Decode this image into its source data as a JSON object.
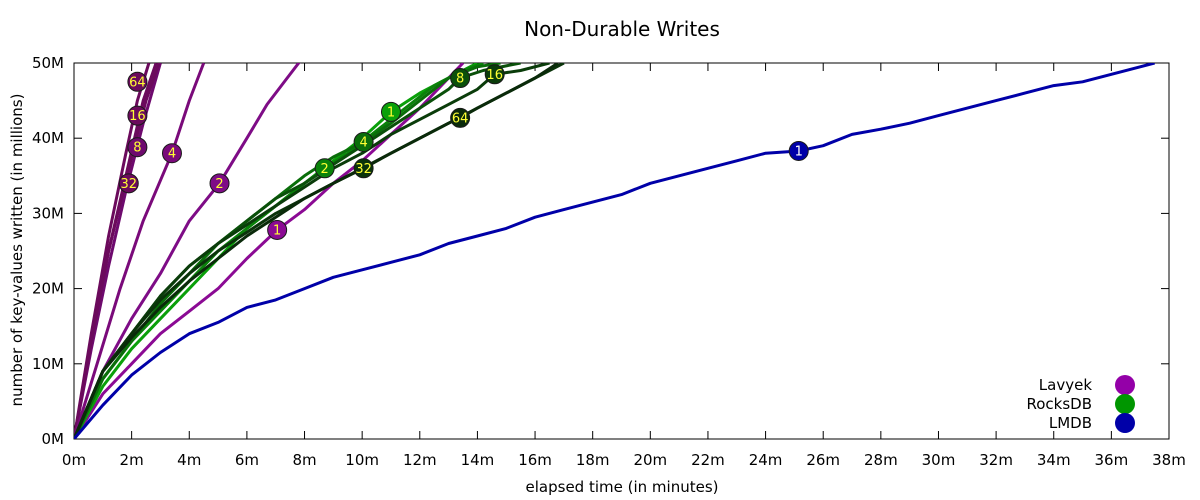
{
  "chart_data": {
    "type": "line",
    "title": "Non-Durable Writes",
    "xlabel": "elapsed time (in minutes)",
    "ylabel": "number of key-values written (in millions)",
    "xlim": [
      0,
      38
    ],
    "ylim": [
      0,
      50
    ],
    "x_ticks": [
      0,
      2,
      4,
      6,
      8,
      10,
      12,
      14,
      16,
      18,
      20,
      22,
      24,
      26,
      28,
      30,
      32,
      34,
      36,
      38
    ],
    "x_tick_labels": [
      "0m",
      "2m",
      "4m",
      "6m",
      "8m",
      "10m",
      "12m",
      "14m",
      "16m",
      "18m",
      "20m",
      "22m",
      "24m",
      "26m",
      "28m",
      "30m",
      "32m",
      "34m",
      "36m",
      "38m"
    ],
    "y_ticks": [
      0,
      10,
      20,
      30,
      40,
      50
    ],
    "y_tick_labels": [
      "0M",
      "10M",
      "20M",
      "30M",
      "40M",
      "50M"
    ],
    "grid": false,
    "legend_position": "bottom-right",
    "legend": [
      {
        "name": "Lavyek",
        "color": "#9400a8"
      },
      {
        "name": "RocksDB",
        "color": "#009600"
      },
      {
        "name": "LMDB",
        "color": "#0000a8"
      }
    ],
    "series": [
      {
        "db": "Lavyek",
        "label": "64",
        "color": "#6b0a5c",
        "marker_x": 2.2,
        "marker_y": 47.5,
        "points": [
          [
            0,
            0
          ],
          [
            0.6,
            14
          ],
          [
            1.2,
            27
          ],
          [
            1.8,
            38
          ],
          [
            2.2,
            45
          ],
          [
            2.6,
            50
          ]
        ]
      },
      {
        "db": "Lavyek",
        "label": "16",
        "color": "#6b0a5c",
        "marker_x": 2.2,
        "marker_y": 43,
        "points": [
          [
            0,
            0
          ],
          [
            0.6,
            13
          ],
          [
            1.2,
            25
          ],
          [
            1.8,
            35
          ],
          [
            2.4,
            45
          ],
          [
            2.85,
            50
          ]
        ]
      },
      {
        "db": "Lavyek",
        "label": "8",
        "color": "#6e0a6e",
        "marker_x": 2.2,
        "marker_y": 38.8,
        "points": [
          [
            0,
            0
          ],
          [
            0.6,
            12
          ],
          [
            1.2,
            23
          ],
          [
            1.8,
            33
          ],
          [
            2.4,
            42
          ],
          [
            3.0,
            50
          ]
        ]
      },
      {
        "db": "Lavyek",
        "label": "32",
        "color": "#6b0a5c",
        "marker_x": 1.9,
        "marker_y": 34,
        "points": [
          [
            0,
            0
          ],
          [
            0.6,
            13
          ],
          [
            1.2,
            25
          ],
          [
            1.9,
            36
          ],
          [
            2.5,
            45
          ],
          [
            2.95,
            50
          ]
        ]
      },
      {
        "db": "Lavyek",
        "label": "4",
        "color": "#7a0a7a",
        "marker_x": 3.4,
        "marker_y": 38,
        "points": [
          [
            0,
            0
          ],
          [
            0.8,
            10
          ],
          [
            1.6,
            20
          ],
          [
            2.4,
            29
          ],
          [
            3.4,
            38
          ],
          [
            4.0,
            45
          ],
          [
            4.5,
            50
          ]
        ]
      },
      {
        "db": "Lavyek",
        "label": "2",
        "color": "#7e0c86",
        "marker_x": 5.05,
        "marker_y": 34,
        "points": [
          [
            0,
            0
          ],
          [
            1,
            9
          ],
          [
            2,
            16
          ],
          [
            3,
            22
          ],
          [
            4,
            29
          ],
          [
            5.05,
            34
          ],
          [
            6,
            40
          ],
          [
            6.7,
            44.5
          ],
          [
            7.4,
            48
          ],
          [
            7.9,
            50.5
          ]
        ]
      },
      {
        "db": "Lavyek",
        "label": "1",
        "color": "#8b0a94",
        "marker_x": 7.05,
        "marker_y": 27.8,
        "points": [
          [
            0,
            0
          ],
          [
            1,
            6
          ],
          [
            2,
            10
          ],
          [
            3,
            14
          ],
          [
            4,
            17
          ],
          [
            5,
            20
          ],
          [
            6,
            24
          ],
          [
            7.05,
            27.8
          ],
          [
            8,
            30.5
          ],
          [
            9,
            34
          ],
          [
            10,
            37
          ],
          [
            11,
            40.5
          ],
          [
            12,
            44
          ],
          [
            13,
            48
          ],
          [
            13.5,
            50
          ]
        ]
      },
      {
        "db": "RocksDB",
        "label": "1",
        "color": "#0aa00a",
        "marker_x": 11.0,
        "marker_y": 43.5,
        "points": [
          [
            0,
            0
          ],
          [
            1,
            7
          ],
          [
            2,
            12
          ],
          [
            3,
            16
          ],
          [
            4,
            20
          ],
          [
            5,
            24
          ],
          [
            6,
            28
          ],
          [
            7,
            31
          ],
          [
            8,
            34
          ],
          [
            9,
            37
          ],
          [
            10,
            40
          ],
          [
            11,
            43.5
          ],
          [
            12,
            46
          ],
          [
            13,
            48
          ],
          [
            14,
            50
          ]
        ]
      },
      {
        "db": "RocksDB",
        "label": "2",
        "color": "#0a820a",
        "marker_x": 8.7,
        "marker_y": 36,
        "points": [
          [
            0,
            0
          ],
          [
            1,
            8
          ],
          [
            2,
            13
          ],
          [
            3,
            17
          ],
          [
            4,
            21
          ],
          [
            5,
            25
          ],
          [
            6,
            28
          ],
          [
            7,
            31
          ],
          [
            8,
            34
          ],
          [
            8.7,
            36
          ],
          [
            9.5,
            38
          ],
          [
            10.5,
            41
          ],
          [
            11.5,
            44
          ],
          [
            12.5,
            47
          ],
          [
            13.5,
            49
          ],
          [
            14.2,
            50
          ]
        ]
      },
      {
        "db": "RocksDB",
        "label": "4",
        "color": "#0a6e0a",
        "marker_x": 10.05,
        "marker_y": 39.5,
        "points": [
          [
            0,
            0
          ],
          [
            1,
            8
          ],
          [
            2,
            13
          ],
          [
            3,
            18
          ],
          [
            4,
            22
          ],
          [
            5,
            26
          ],
          [
            6,
            29
          ],
          [
            7,
            32
          ],
          [
            8,
            35
          ],
          [
            9,
            37.5
          ],
          [
            10.05,
            39.5
          ],
          [
            11,
            42
          ],
          [
            12,
            45
          ],
          [
            13,
            48
          ],
          [
            14,
            49.5
          ],
          [
            14.8,
            50
          ]
        ]
      },
      {
        "db": "RocksDB",
        "label": "8",
        "color": "#0a500a",
        "marker_x": 13.4,
        "marker_y": 48,
        "points": [
          [
            0,
            0
          ],
          [
            1,
            9
          ],
          [
            2,
            14
          ],
          [
            3,
            19
          ],
          [
            4,
            23
          ],
          [
            5,
            26
          ],
          [
            6,
            29
          ],
          [
            7,
            32
          ],
          [
            8,
            34
          ],
          [
            9,
            36.5
          ],
          [
            10,
            39
          ],
          [
            11,
            41.5
          ],
          [
            12,
            44
          ],
          [
            13,
            46.5
          ],
          [
            13.4,
            48
          ],
          [
            14.2,
            49
          ],
          [
            15.5,
            50
          ]
        ]
      },
      {
        "db": "RocksDB",
        "label": "16",
        "color": "#0a3c0a",
        "marker_x": 14.6,
        "marker_y": 48.5,
        "points": [
          [
            0,
            0
          ],
          [
            1,
            9
          ],
          [
            2,
            14
          ],
          [
            3,
            19
          ],
          [
            4,
            23
          ],
          [
            5,
            26
          ],
          [
            6,
            28.5
          ],
          [
            7,
            31
          ],
          [
            8,
            33.5
          ],
          [
            9,
            36
          ],
          [
            10,
            38
          ],
          [
            11,
            40.5
          ],
          [
            12,
            42.5
          ],
          [
            13,
            44.5
          ],
          [
            14,
            46.5
          ],
          [
            14.6,
            48.5
          ],
          [
            15.5,
            49
          ],
          [
            16.5,
            50
          ]
        ]
      },
      {
        "db": "RocksDB",
        "label": "32",
        "color": "#0a330a",
        "marker_x": 10.05,
        "marker_y": 36,
        "points": [
          [
            0,
            0
          ],
          [
            1,
            9
          ],
          [
            2,
            14
          ],
          [
            3,
            18.5
          ],
          [
            4,
            22
          ],
          [
            5,
            25
          ],
          [
            6,
            27.5
          ],
          [
            7,
            30
          ],
          [
            8,
            32
          ],
          [
            9,
            34
          ],
          [
            10.05,
            36
          ],
          [
            11,
            38
          ],
          [
            12,
            40
          ],
          [
            13,
            42
          ],
          [
            14,
            44
          ],
          [
            15,
            46
          ],
          [
            16,
            48
          ],
          [
            17,
            50
          ]
        ]
      },
      {
        "db": "RocksDB",
        "label": "64",
        "color": "#0a2a0a",
        "marker_x": 13.4,
        "marker_y": 42.7,
        "points": [
          [
            0,
            0
          ],
          [
            1,
            9
          ],
          [
            2,
            13.5
          ],
          [
            3,
            17.5
          ],
          [
            4,
            21
          ],
          [
            5,
            24
          ],
          [
            6,
            27
          ],
          [
            7,
            29.5
          ],
          [
            8,
            32
          ],
          [
            9,
            34
          ],
          [
            10,
            36
          ],
          [
            11,
            38
          ],
          [
            12,
            40
          ],
          [
            13,
            42
          ],
          [
            13.4,
            42.7
          ],
          [
            14,
            44
          ],
          [
            15,
            46
          ],
          [
            16,
            48
          ],
          [
            16.8,
            50
          ]
        ]
      },
      {
        "db": "LMDB",
        "label": "1",
        "color": "#0000a8",
        "marker_x": 25.15,
        "marker_y": 38.3,
        "points": [
          [
            0,
            0
          ],
          [
            1,
            4.5
          ],
          [
            2,
            8.5
          ],
          [
            3,
            11.5
          ],
          [
            4,
            14
          ],
          [
            5,
            15.5
          ],
          [
            6,
            17.5
          ],
          [
            7,
            18.5
          ],
          [
            8,
            20
          ],
          [
            9,
            21.5
          ],
          [
            10,
            22.5
          ],
          [
            11,
            23.5
          ],
          [
            12,
            24.5
          ],
          [
            13,
            26
          ],
          [
            14,
            27
          ],
          [
            15,
            28
          ],
          [
            16,
            29.5
          ],
          [
            17,
            30.5
          ],
          [
            18,
            31.5
          ],
          [
            19,
            32.5
          ],
          [
            20,
            34
          ],
          [
            21,
            35
          ],
          [
            22,
            36
          ],
          [
            23,
            37
          ],
          [
            24,
            38
          ],
          [
            25.15,
            38.3
          ],
          [
            26,
            39
          ],
          [
            27,
            40.5
          ],
          [
            28,
            41.2
          ],
          [
            29,
            42
          ],
          [
            30,
            43
          ],
          [
            31,
            44
          ],
          [
            32,
            45
          ],
          [
            33,
            46
          ],
          [
            34,
            47
          ],
          [
            35,
            47.5
          ],
          [
            36,
            48.5
          ],
          [
            37,
            49.5
          ],
          [
            37.5,
            50
          ]
        ]
      }
    ]
  }
}
